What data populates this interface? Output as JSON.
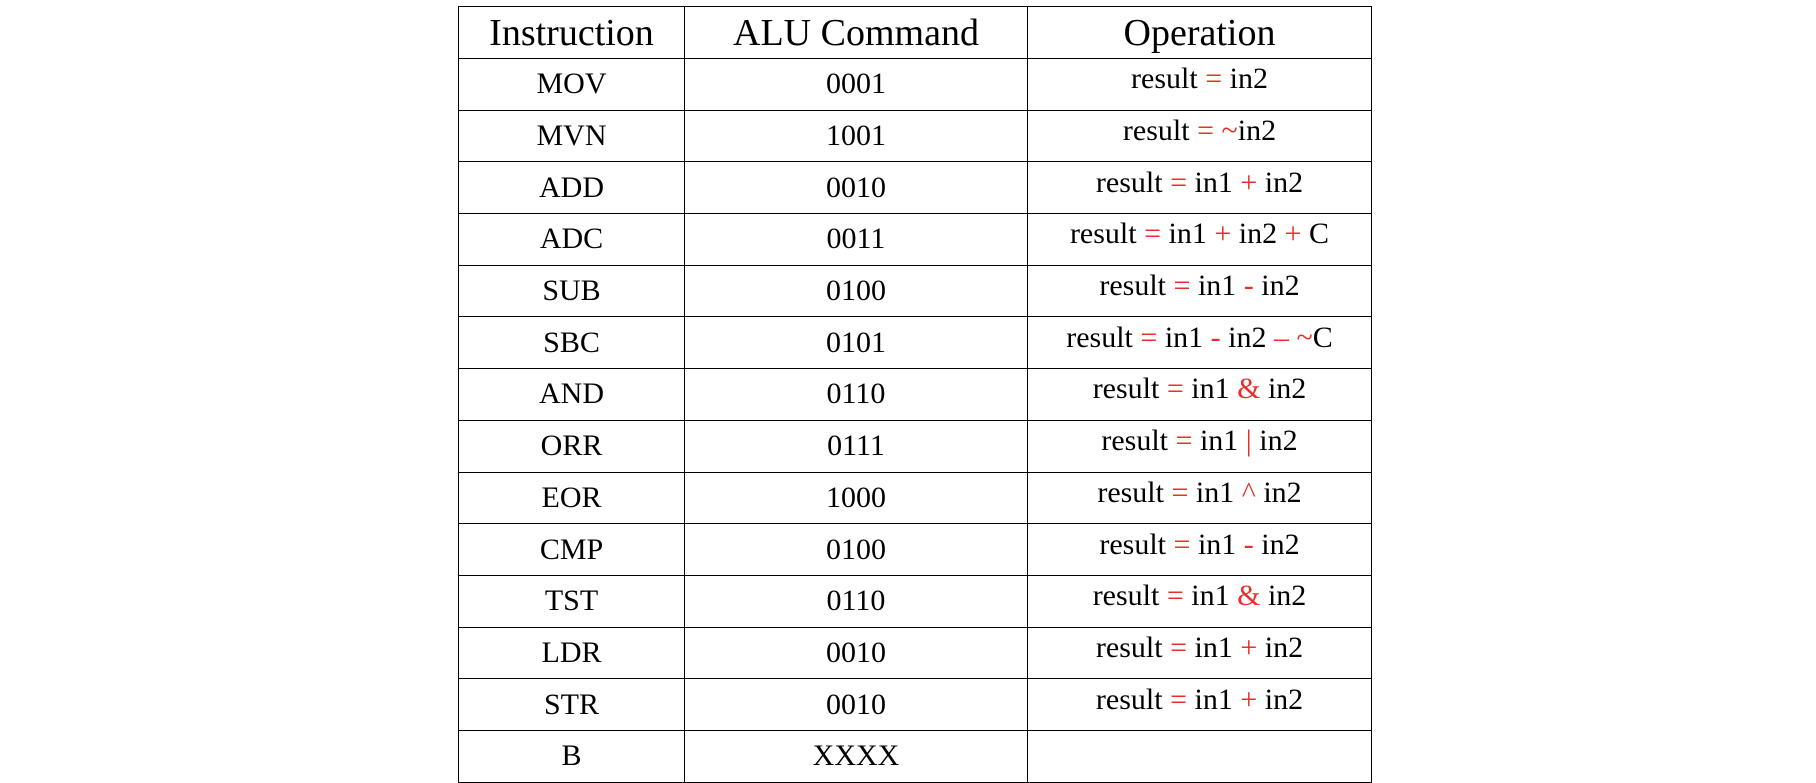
{
  "table": {
    "headers": [
      "Instruction",
      "ALU Command",
      "Operation"
    ],
    "rows": [
      {
        "instruction": "MOV",
        "command": "0001",
        "operation": [
          {
            "t": "result",
            "s": false
          },
          {
            "t": " = ",
            "s": true
          },
          {
            "t": "in2",
            "s": false
          }
        ]
      },
      {
        "instruction": "MVN",
        "command": "1001",
        "operation": [
          {
            "t": "result",
            "s": false
          },
          {
            "t": " = ~",
            "s": true
          },
          {
            "t": "in2",
            "s": false
          }
        ]
      },
      {
        "instruction": "ADD",
        "command": "0010",
        "operation": [
          {
            "t": "result",
            "s": false
          },
          {
            "t": " = ",
            "s": true
          },
          {
            "t": "in1",
            "s": false
          },
          {
            "t": " + ",
            "s": true
          },
          {
            "t": "in2",
            "s": false
          }
        ]
      },
      {
        "instruction": "ADC",
        "command": "0011",
        "operation": [
          {
            "t": "result",
            "s": false
          },
          {
            "t": " = ",
            "s": true
          },
          {
            "t": "in1",
            "s": false
          },
          {
            "t": " + ",
            "s": true
          },
          {
            "t": "in2",
            "s": false
          },
          {
            "t": " + ",
            "s": true
          },
          {
            "t": "C",
            "s": false
          }
        ]
      },
      {
        "instruction": "SUB",
        "command": "0100",
        "operation": [
          {
            "t": "result",
            "s": false
          },
          {
            "t": " = ",
            "s": true
          },
          {
            "t": "in1",
            "s": false
          },
          {
            "t": " - ",
            "s": true
          },
          {
            "t": "in2",
            "s": false
          }
        ]
      },
      {
        "instruction": "SBC",
        "command": "0101",
        "operation": [
          {
            "t": "result",
            "s": false
          },
          {
            "t": " = ",
            "s": true
          },
          {
            "t": "in1",
            "s": false
          },
          {
            "t": " - ",
            "s": true
          },
          {
            "t": "in2",
            "s": false
          },
          {
            "t": " – ~",
            "s": true
          },
          {
            "t": "C",
            "s": false
          }
        ]
      },
      {
        "instruction": "AND",
        "command": "0110",
        "operation": [
          {
            "t": "result",
            "s": false
          },
          {
            "t": " = ",
            "s": true
          },
          {
            "t": "in1",
            "s": false
          },
          {
            "t": " & ",
            "s": true
          },
          {
            "t": "in2",
            "s": false
          }
        ]
      },
      {
        "instruction": "ORR",
        "command": "0111",
        "operation": [
          {
            "t": "result",
            "s": false
          },
          {
            "t": " = ",
            "s": true
          },
          {
            "t": "in1",
            "s": false
          },
          {
            "t": " | ",
            "s": true
          },
          {
            "t": "in2",
            "s": false
          }
        ]
      },
      {
        "instruction": "EOR",
        "command": "1000",
        "operation": [
          {
            "t": "result",
            "s": false
          },
          {
            "t": " = ",
            "s": true
          },
          {
            "t": "in1",
            "s": false
          },
          {
            "t": " ^ ",
            "s": true
          },
          {
            "t": "in2",
            "s": false
          }
        ]
      },
      {
        "instruction": "CMP",
        "command": "0100",
        "operation": [
          {
            "t": "result",
            "s": false
          },
          {
            "t": " = ",
            "s": true
          },
          {
            "t": "in1",
            "s": false
          },
          {
            "t": " - ",
            "s": true
          },
          {
            "t": "in2",
            "s": false
          }
        ]
      },
      {
        "instruction": "TST",
        "command": "0110",
        "operation": [
          {
            "t": "result",
            "s": false
          },
          {
            "t": " = ",
            "s": true
          },
          {
            "t": "in1",
            "s": false
          },
          {
            "t": " & ",
            "s": true
          },
          {
            "t": "in2",
            "s": false
          }
        ]
      },
      {
        "instruction": "LDR",
        "command": "0010",
        "operation": [
          {
            "t": "result",
            "s": false
          },
          {
            "t": " = ",
            "s": true
          },
          {
            "t": "in1",
            "s": false
          },
          {
            "t": " + ",
            "s": true
          },
          {
            "t": "in2",
            "s": false
          }
        ]
      },
      {
        "instruction": "STR",
        "command": "0010",
        "operation": [
          {
            "t": "result",
            "s": false
          },
          {
            "t": " = ",
            "s": true
          },
          {
            "t": "in1",
            "s": false
          },
          {
            "t": " + ",
            "s": true
          },
          {
            "t": "in2",
            "s": false
          }
        ]
      },
      {
        "instruction": "B",
        "command": "XXXX",
        "operation": []
      }
    ]
  },
  "colors": {
    "operator": "#e8302a",
    "text": "#000000",
    "border": "#000000"
  }
}
